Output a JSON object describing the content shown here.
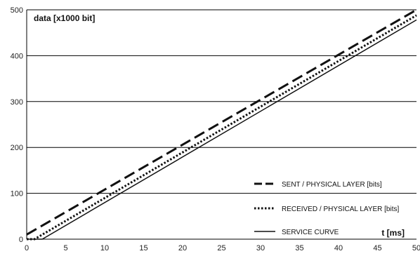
{
  "chart_data": {
    "type": "line",
    "ylabel": "data [x1000 bit]",
    "xlabel": "t [ms]",
    "xlim": [
      0,
      50
    ],
    "ylim": [
      0,
      500
    ],
    "x_ticks": [
      0,
      5,
      10,
      15,
      20,
      25,
      30,
      35,
      40,
      45,
      50
    ],
    "y_ticks": [
      0,
      100,
      200,
      300,
      400,
      500
    ],
    "grid": "horizontal",
    "legend_position": "bottom-right",
    "series": [
      {
        "name": "SENT / PHYSICAL LAYER [bits]",
        "style": "dashed",
        "color": "#111111",
        "points": [
          [
            0,
            10
          ],
          [
            50,
            500
          ]
        ]
      },
      {
        "name": "RECEIVED / PHYSICAL LAYER [bits]",
        "style": "dotted",
        "color": "#111111",
        "points": [
          [
            0,
            0
          ],
          [
            1,
            0
          ],
          [
            50,
            488
          ]
        ]
      },
      {
        "name": "SERVICE CURVE",
        "style": "solid",
        "color": "#111111",
        "points": [
          [
            0,
            0
          ],
          [
            2,
            0
          ],
          [
            50,
            478
          ]
        ]
      }
    ]
  }
}
